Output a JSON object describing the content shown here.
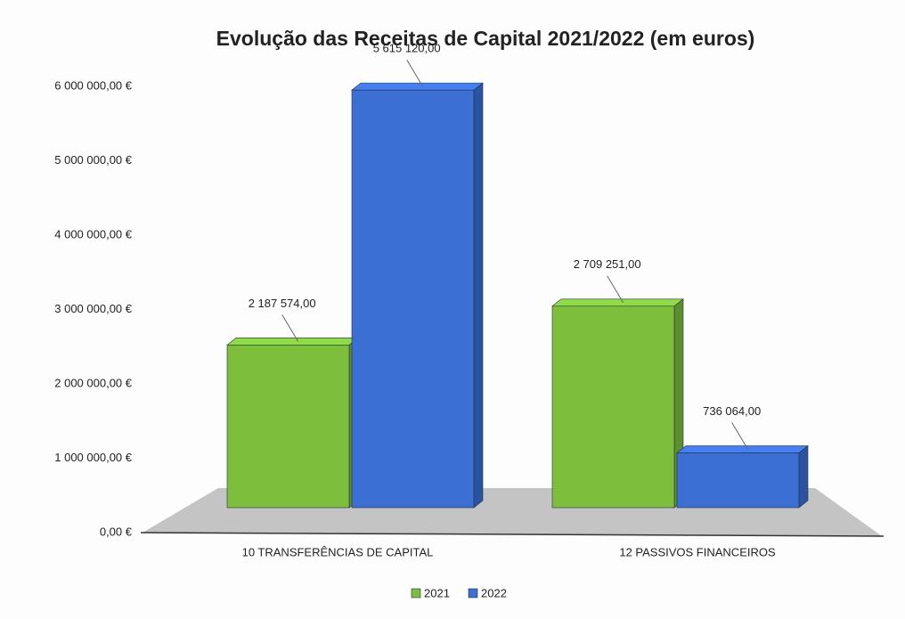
{
  "chart_data": {
    "type": "bar3d",
    "title": "Evolução das Receitas de Capital 2021/2022 (em euros)",
    "categories": [
      "10 TRANSFERÊNCIAS DE CAPITAL",
      "12 PASSIVOS FINANCEIROS"
    ],
    "series": [
      {
        "name": "2021",
        "color": "#7dbf3c",
        "values": [
          2187574,
          2709251
        ],
        "value_labels": [
          "2 187 574,00",
          "2 709 251,00"
        ]
      },
      {
        "name": "2022",
        "color": "#3b6fd4",
        "values": [
          5615120,
          736064
        ],
        "value_labels": [
          "5 615 120,00",
          "736 064,00"
        ]
      }
    ],
    "ylim": [
      0,
      6000000
    ],
    "yticks": [
      {
        "value": 0,
        "label": "0,00 €"
      },
      {
        "value": 1000000,
        "label": "1 000 000,00 €"
      },
      {
        "value": 2000000,
        "label": "2 000 000,00 €"
      },
      {
        "value": 3000000,
        "label": "3 000 000,00 €"
      },
      {
        "value": 4000000,
        "label": "4 000 000,00 €"
      },
      {
        "value": 5000000,
        "label": "5 000 000,00 €"
      },
      {
        "value": 6000000,
        "label": "6 000 000,00 €"
      }
    ],
    "legend": "bottom"
  }
}
